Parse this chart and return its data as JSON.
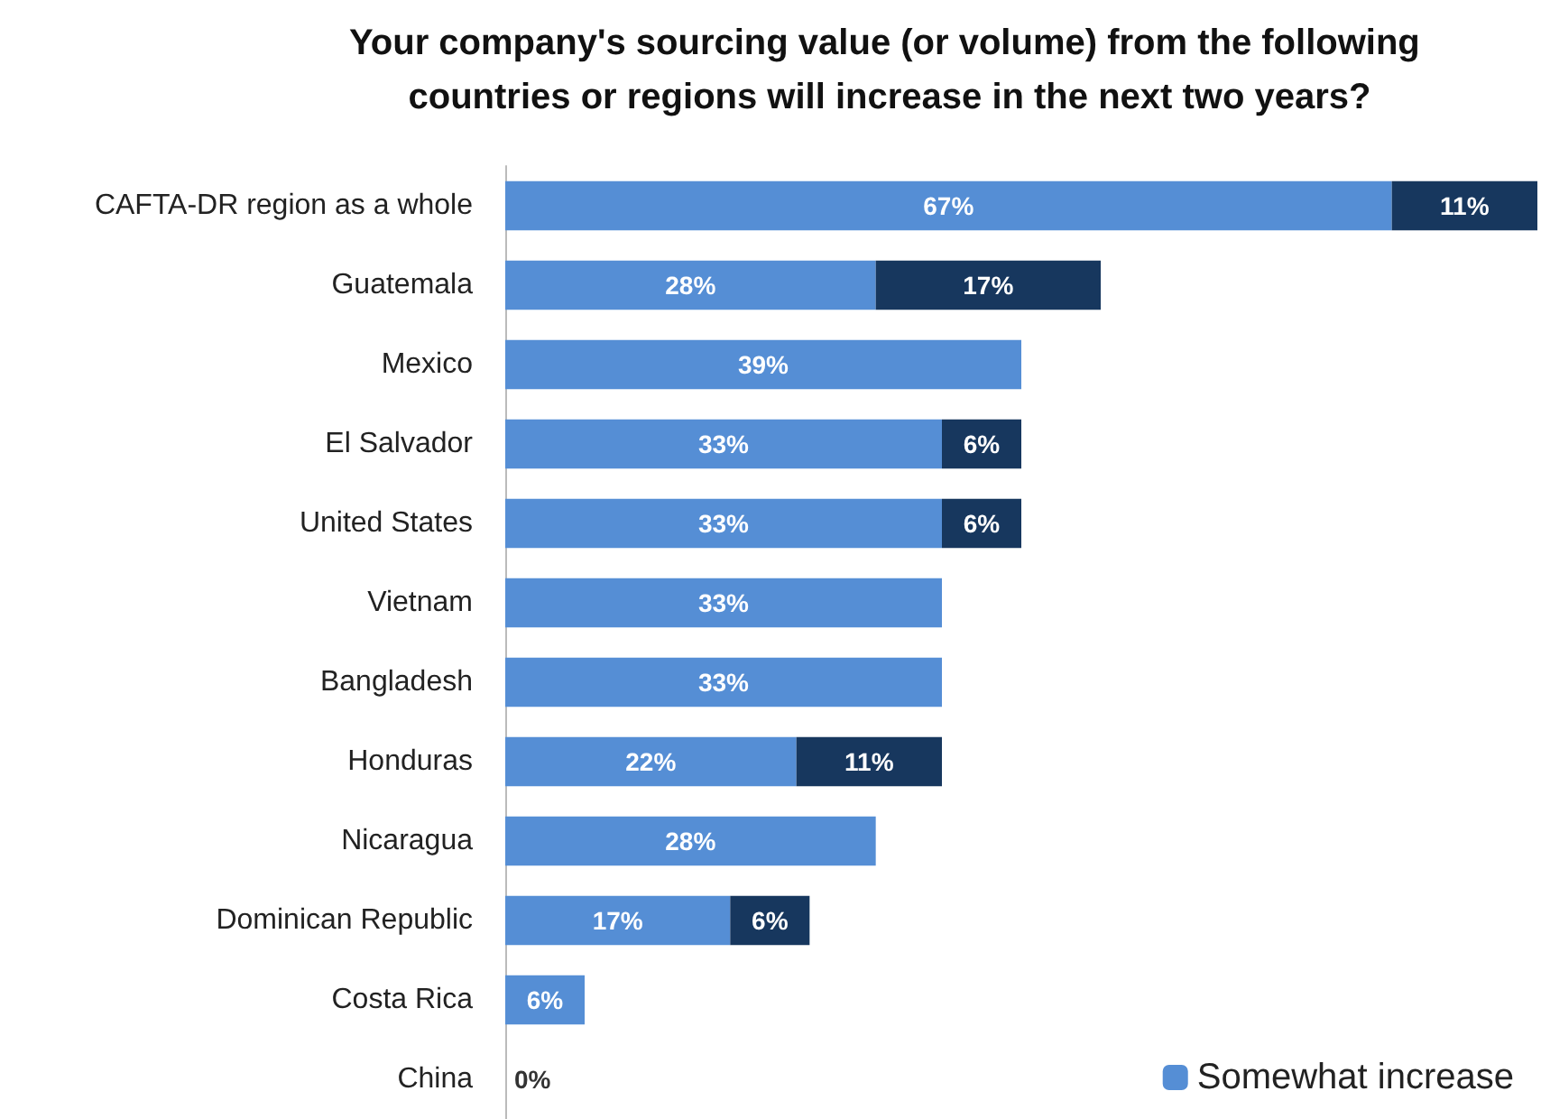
{
  "chart_data": {
    "type": "bar",
    "orientation": "horizontal",
    "stacked": true,
    "title": "Your company's sourcing value (or volume) from the following countries or regions will increase in the next two years?",
    "categories": [
      "CAFTA-DR region as a whole",
      "Guatemala",
      "Mexico",
      "El Salvador",
      "United States",
      "Vietnam",
      "Bangladesh",
      "Honduras",
      "Nicaragua",
      "Dominican Republic",
      "Costa Rica",
      "China"
    ],
    "series": [
      {
        "name": "Somewhat increase",
        "color": "#558ed5",
        "values": [
          67,
          28,
          39,
          33,
          33,
          33,
          33,
          22,
          28,
          17,
          6,
          0
        ],
        "value_labels": [
          "67%",
          "28%",
          "39%",
          "33%",
          "33%",
          "33%",
          "33%",
          "22%",
          "28%",
          "17%",
          "6%",
          "0%"
        ]
      },
      {
        "color": "#17375e",
        "values": [
          11,
          17,
          null,
          6,
          6,
          null,
          null,
          11,
          null,
          6,
          null,
          null
        ],
        "value_labels": [
          "11%",
          "17%",
          null,
          "6%",
          "6%",
          null,
          null,
          "11%",
          null,
          "6%",
          null,
          null
        ]
      }
    ],
    "legend": "bottom right"
  }
}
